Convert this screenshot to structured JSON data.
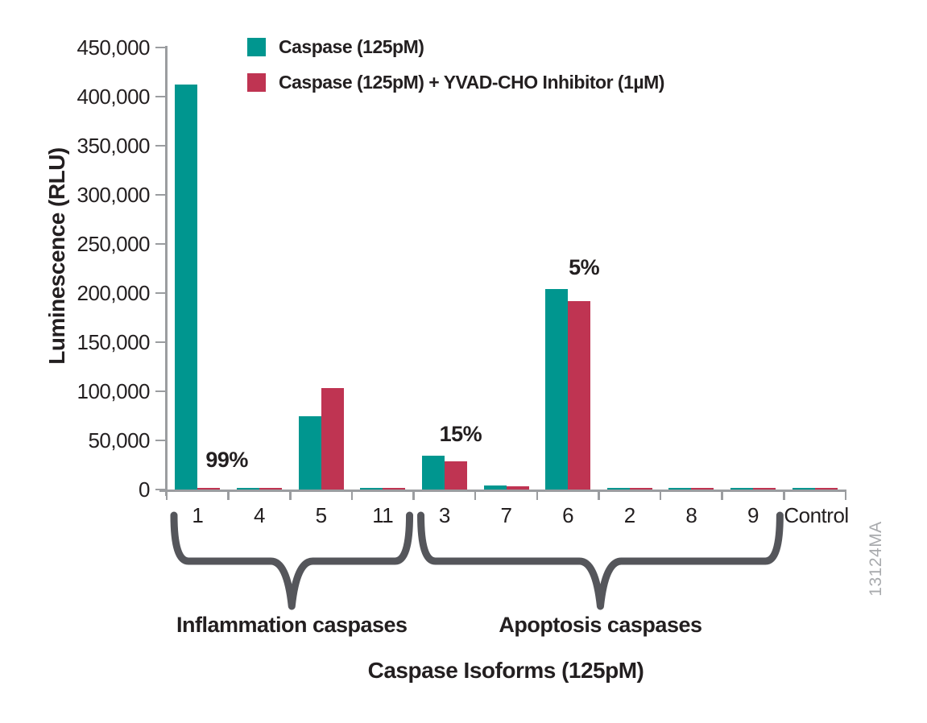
{
  "chart_data": {
    "type": "bar",
    "title": "",
    "xlabel": "Caspase Isoforms (125pM)",
    "ylabel": "Luminescence (RLU)",
    "ylim": [
      0,
      450000
    ],
    "ytick_step": 50000,
    "ytick_labels": [
      "0",
      "50,000",
      "100,000",
      "150,000",
      "200,000",
      "250,000",
      "300,000",
      "350,000",
      "400,000",
      "450,000"
    ],
    "grid": false,
    "legend_position": "top-left",
    "categories": [
      "1",
      "4",
      "5",
      "11",
      "3",
      "7",
      "6",
      "2",
      "8",
      "9",
      "Control"
    ],
    "series": [
      {
        "name": "Caspase (125pM)",
        "color": "#00968F",
        "values": [
          412000,
          2000,
          75000,
          2000,
          34500,
          4500,
          204000,
          2000,
          2000,
          2000,
          2000
        ]
      },
      {
        "name": "Caspase (125pM) + YVAD-CHO Inhibitor (1µM)",
        "color": "#BF3452",
        "values": [
          1500,
          1800,
          103000,
          1800,
          29000,
          3500,
          192000,
          1800,
          1800,
          1800,
          1800
        ]
      }
    ],
    "annotations": [
      {
        "text": "99%",
        "category": "1",
        "placement": "base-right"
      },
      {
        "text": "15%",
        "category": "3",
        "placement": "above"
      },
      {
        "text": "5%",
        "category": "6",
        "placement": "above"
      }
    ],
    "groups": [
      {
        "label": "Inflammation caspases",
        "from": "1",
        "to": "11"
      },
      {
        "label": "Apoptosis caspases",
        "from": "3",
        "to": "9"
      }
    ],
    "watermark": "13124MA",
    "colors": {
      "axis": "#9B9DA0",
      "brace": "#55565B",
      "text": "#231F20",
      "watermark": "#A8AAAD"
    }
  }
}
